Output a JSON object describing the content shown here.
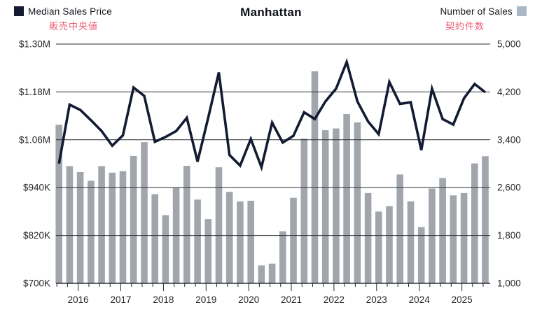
{
  "title": "Manhattan",
  "legend_left": {
    "label": "Median Sales Price",
    "label_ja": "販売中央値"
  },
  "legend_right": {
    "label": "Number of Sales",
    "label_ja": "契約件数"
  },
  "colors": {
    "price_line": "#131b33",
    "price_swatch": "#131b33",
    "sales_bar": "#a1a6ac",
    "sales_swatch": "#a9b8c6",
    "ja_accent": "#ed5c76",
    "grid_line": "#2c2e33",
    "axis_text": "#25272b"
  },
  "left_axis": {
    "title": "Median Sales Price",
    "ticks": [
      "$1.30M",
      "$1.18M",
      "$1.06M",
      "$940K",
      "$820K",
      "$700K"
    ],
    "values_k": [
      1300,
      1180,
      1060,
      940,
      820,
      700
    ]
  },
  "right_axis": {
    "title": "Number of Sales",
    "ticks": [
      "5,000",
      "4,200",
      "3,400",
      "2,600",
      "1,800",
      "1,000"
    ],
    "values": [
      5000,
      4200,
      3400,
      2600,
      1800,
      1000
    ]
  },
  "x_axis": {
    "years": [
      "2016",
      "2017",
      "2018",
      "2019",
      "2020",
      "2021",
      "2022",
      "2023",
      "2024",
      "2025"
    ]
  },
  "chart_data": {
    "type": "combo",
    "x": [
      "2015 Q3",
      "2015 Q4",
      "2016 Q1",
      "2016 Q2",
      "2016 Q3",
      "2016 Q4",
      "2017 Q1",
      "2017 Q2",
      "2017 Q3",
      "2017 Q4",
      "2018 Q1",
      "2018 Q2",
      "2018 Q3",
      "2018 Q4",
      "2019 Q1",
      "2019 Q2",
      "2019 Q3",
      "2019 Q4",
      "2020 Q1",
      "2020 Q2",
      "2020 Q3",
      "2020 Q4",
      "2021 Q1",
      "2021 Q2",
      "2021 Q3",
      "2021 Q4",
      "2022 Q1",
      "2022 Q2",
      "2022 Q3",
      "2022 Q4",
      "2023 Q1",
      "2023 Q2",
      "2023 Q3",
      "2023 Q4",
      "2024 Q1",
      "2024 Q2",
      "2024 Q3",
      "2024 Q4",
      "2025 Q1",
      "2025 Q2",
      "2025 Q3"
    ],
    "series": [
      {
        "name": "Median Sales Price",
        "type": "line",
        "axis": "left",
        "unit": "USD thousands",
        "values": [
          1000,
          1148,
          1135,
          1109,
          1082,
          1045,
          1071,
          1191,
          1170,
          1055,
          1067,
          1082,
          1115,
          1005,
          1115,
          1229,
          1022,
          995,
          1062,
          991,
          1103,
          1053,
          1070,
          1129,
          1112,
          1156,
          1188,
          1255,
          1156,
          1106,
          1074,
          1205,
          1150,
          1154,
          1034,
          1188,
          1112,
          1098,
          1164,
          1200,
          1179
        ]
      },
      {
        "name": "Number of Sales",
        "type": "bar",
        "axis": "right",
        "unit": "sales",
        "values": [
          3650,
          2960,
          2860,
          2715,
          2960,
          2850,
          2875,
          3130,
          3360,
          2490,
          2140,
          2600,
          2965,
          2400,
          2075,
          2940,
          2530,
          2370,
          2380,
          1300,
          1330,
          1870,
          2430,
          3420,
          4545,
          3560,
          3590,
          3830,
          3690,
          2510,
          2200,
          2290,
          2820,
          2370,
          1940,
          2585,
          2760,
          2470,
          2510,
          3005,
          3125
        ]
      }
    ],
    "left_ylim_k": [
      700,
      1300
    ],
    "right_ylim": [
      1000,
      5000
    ],
    "grid": "horizontal",
    "legend_position": "top"
  }
}
